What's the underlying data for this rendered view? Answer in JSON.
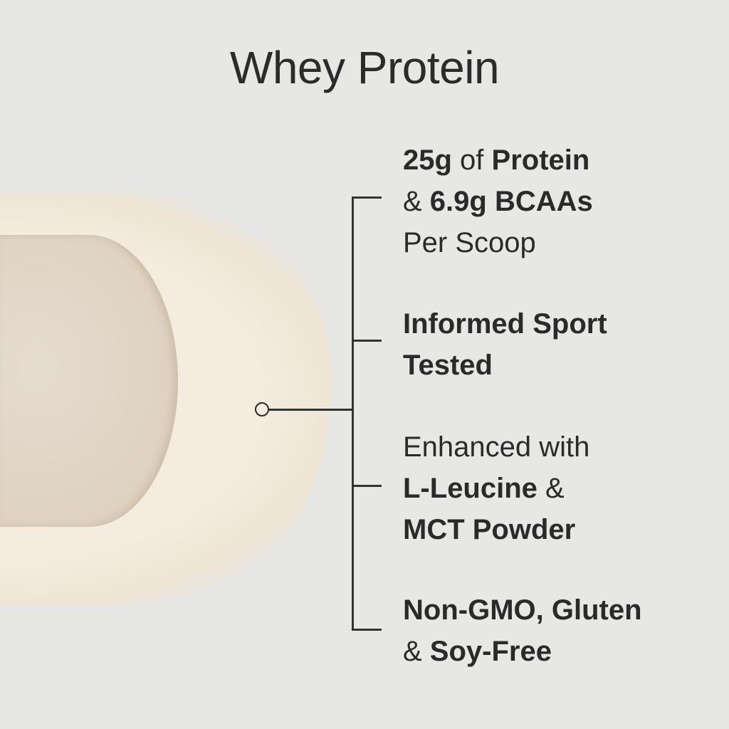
{
  "title": "Whey Protein",
  "features": [
    {
      "lines": [
        [
          {
            "text": "25g",
            "bold": true
          },
          {
            "text": " of ",
            "bold": false
          },
          {
            "text": "Protein",
            "bold": true
          }
        ],
        [
          {
            "text": "& ",
            "bold": false
          },
          {
            "text": "6.9g BCAAs",
            "bold": true
          }
        ],
        [
          {
            "text": "Per Scoop",
            "bold": false
          }
        ]
      ]
    },
    {
      "lines": [
        [
          {
            "text": "Informed Sport",
            "bold": true
          }
        ],
        [
          {
            "text": "Tested",
            "bold": true
          }
        ]
      ]
    },
    {
      "lines": [
        [
          {
            "text": "Enhanced with",
            "bold": false
          }
        ],
        [
          {
            "text": "L-Leucine",
            "bold": true
          },
          {
            "text": " &",
            "bold": false
          }
        ],
        [
          {
            "text": "MCT Powder",
            "bold": true
          }
        ]
      ]
    },
    {
      "lines": [
        [
          {
            "text": "Non-GMO, Gluten",
            "bold": true
          }
        ],
        [
          {
            "text": "& ",
            "bold": false
          },
          {
            "text": "Soy-Free",
            "bold": true
          }
        ]
      ]
    }
  ],
  "colors": {
    "background": "#e7e7e6",
    "text": "#2a2a2a",
    "powder": "#f4ecdf"
  }
}
